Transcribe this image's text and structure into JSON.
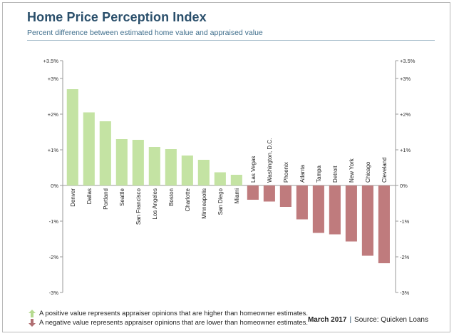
{
  "header": {
    "title": "Home Price Perception Index",
    "subtitle": "Percent difference between estimated home value and appraised value"
  },
  "legend": {
    "positive": "A positive value represents appraiser opinions that are higher than homeowner estimates.",
    "negative": "A negative value represents appraiser opinions that are lower than homeowner estimates."
  },
  "footer": {
    "date": "March 2017",
    "separator": "|",
    "source": "Source: Quicken Loans"
  },
  "colors": {
    "positive": "#c4e3a3",
    "negative": "#bf7b7d",
    "positive_arrow": "#b5da8f",
    "negative_arrow": "#b06f72"
  },
  "chart_data": {
    "type": "bar",
    "title": "Home Price Perception Index",
    "subtitle": "Percent difference between estimated home value and appraised value",
    "categories": [
      "Denver",
      "Dallas",
      "Portland",
      "Seattle",
      "San Francisco",
      "Los Angeles",
      "Boston",
      "Charlotte",
      "Minneapolis",
      "San Diego",
      "Miami",
      "Las Vegas",
      "Washington, D.C.",
      "Phoenix",
      "Atlanta",
      "Tampa",
      "Detroit",
      "New York",
      "Chicago",
      "Cleveland"
    ],
    "values": [
      2.7,
      2.05,
      1.8,
      1.3,
      1.28,
      1.08,
      1.02,
      0.84,
      0.72,
      0.37,
      0.3,
      -0.4,
      -0.45,
      -0.6,
      -0.95,
      -1.33,
      -1.37,
      -1.57,
      -1.97,
      -2.18
    ],
    "ylim": [
      -3,
      3.5
    ],
    "yticks": [
      3.5,
      3,
      2,
      1,
      0,
      -1,
      -2,
      -3
    ],
    "ytick_labels": [
      "+3.5%",
      "+3%",
      "+2%",
      "+1%",
      "0%",
      "-1%",
      "-2%",
      "-3%"
    ],
    "grid": false,
    "axes": "left and right"
  }
}
